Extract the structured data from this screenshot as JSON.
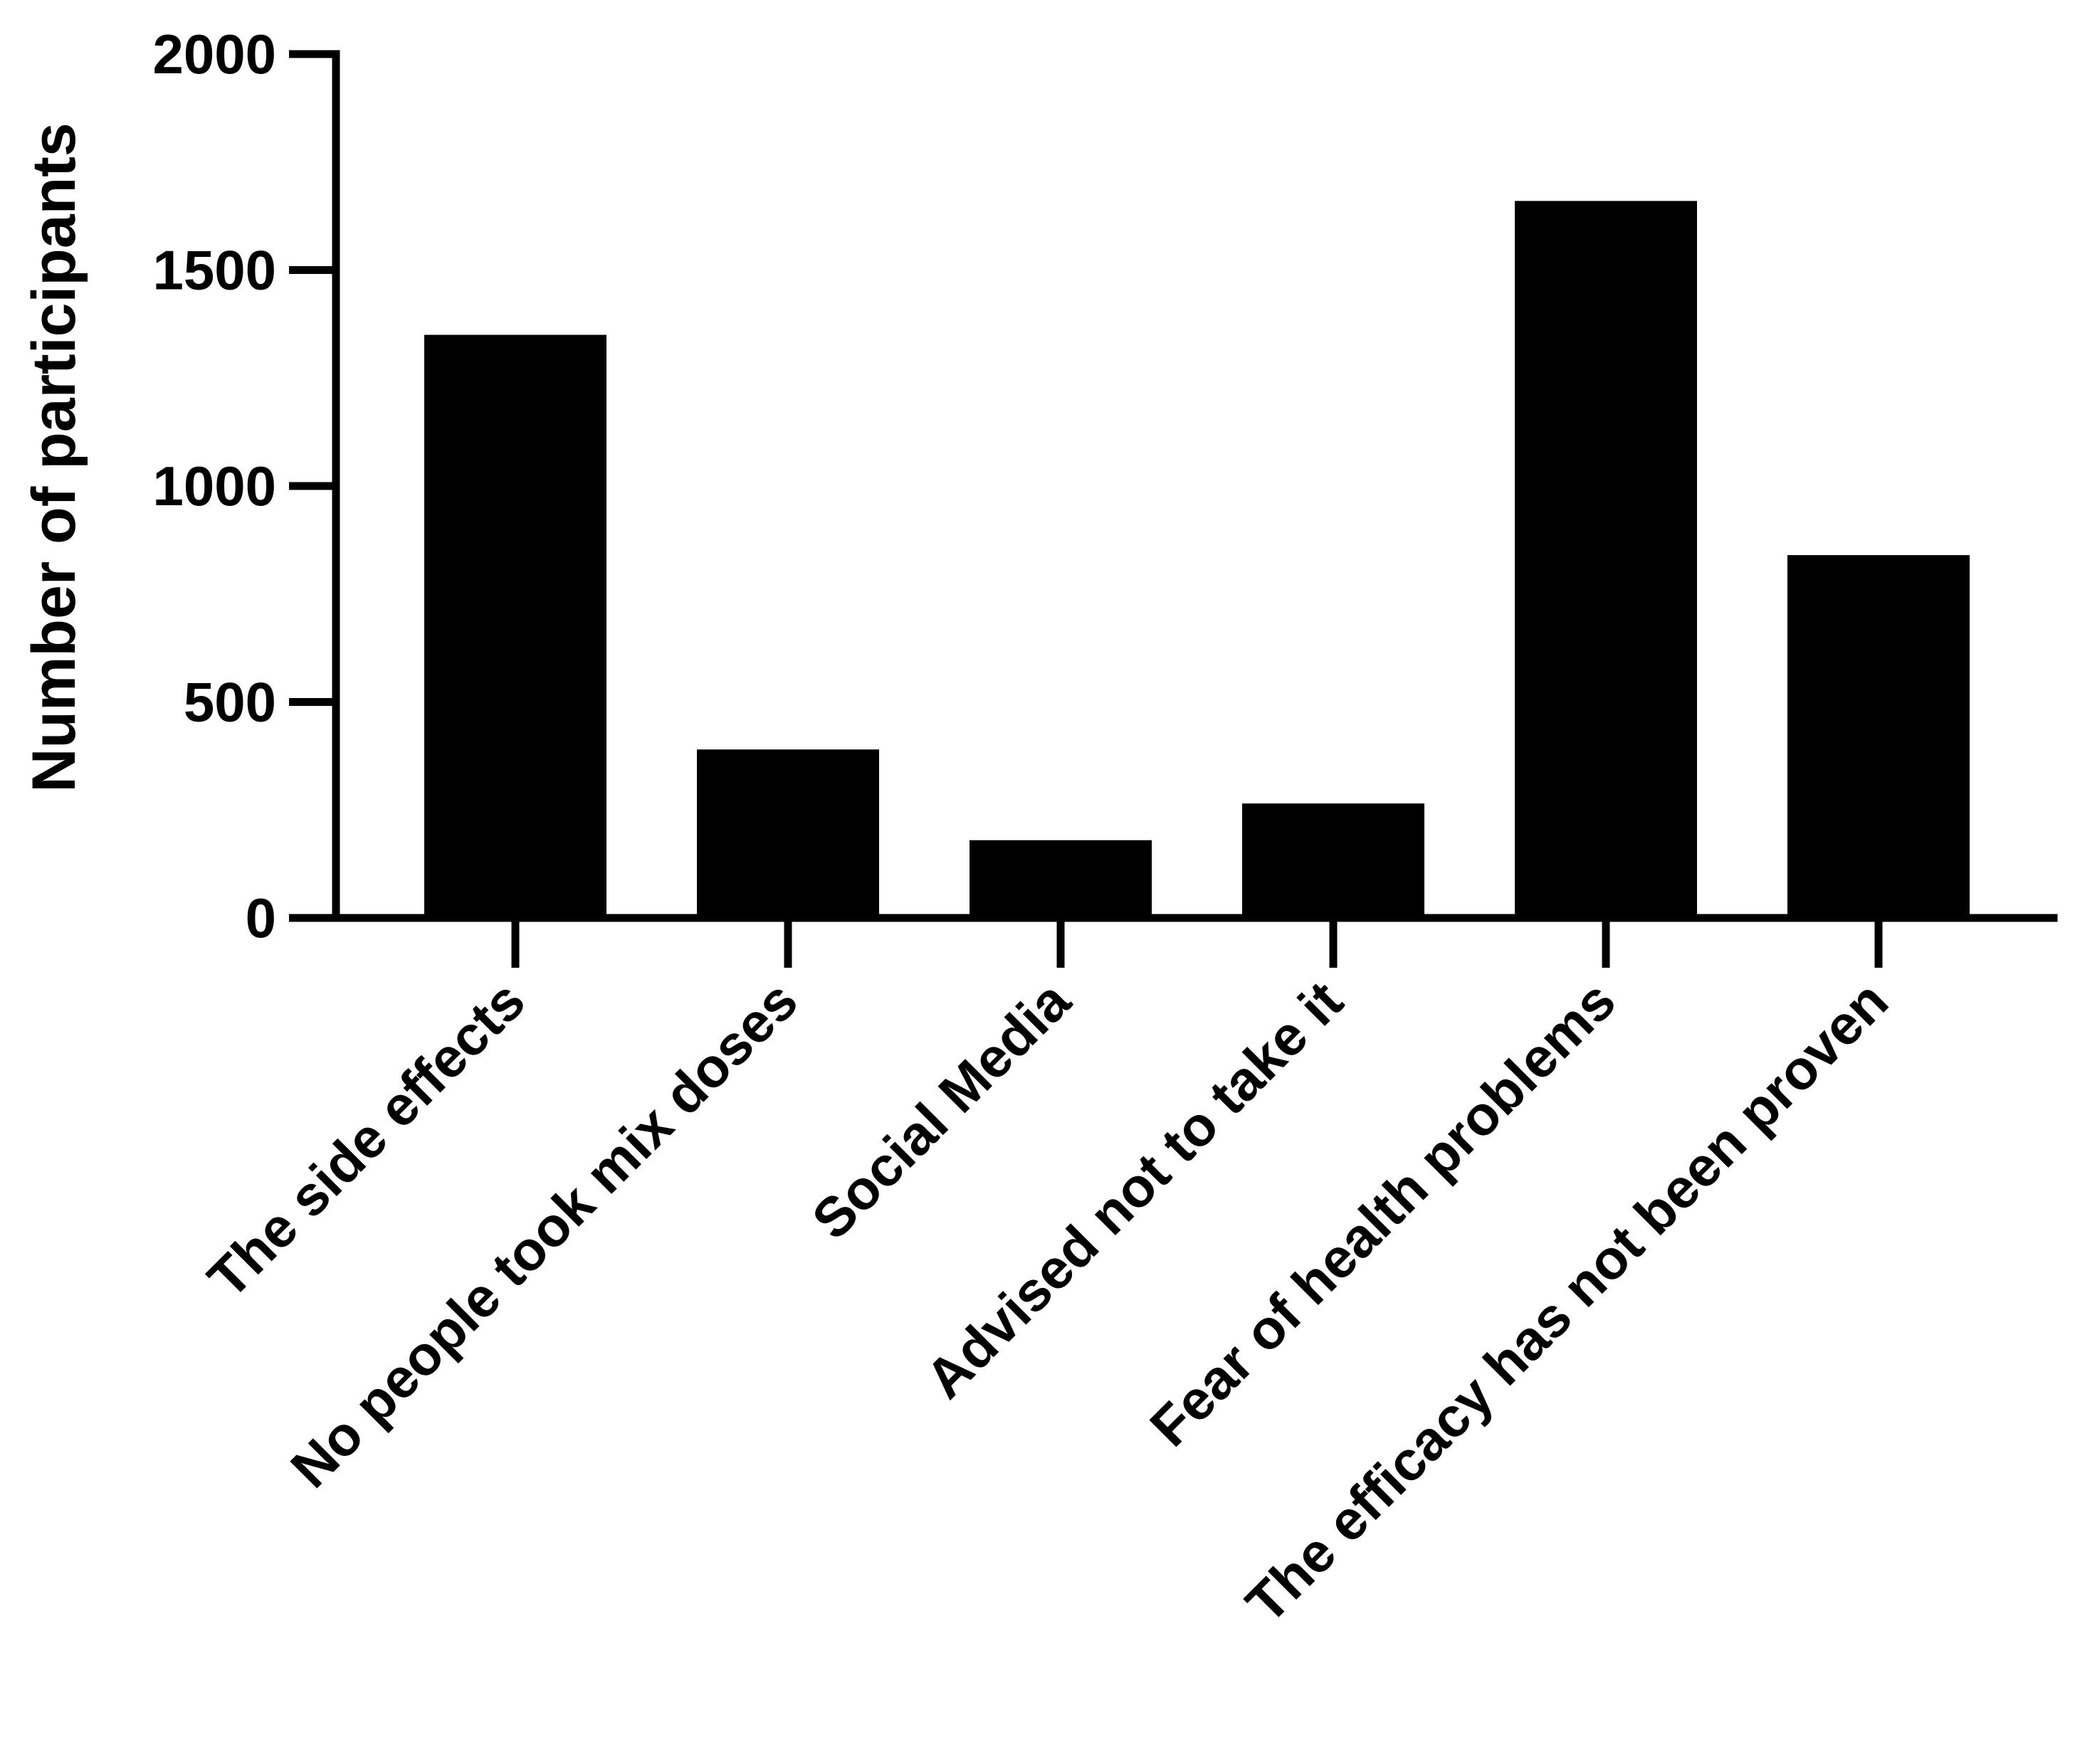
{
  "chart_data": {
    "type": "bar",
    "title": "",
    "xlabel": "",
    "ylabel": "Number of participants",
    "categories": [
      "The side effects",
      "No people took mix doses",
      "Social Media",
      "Advised not to take it",
      "Fear of health problems",
      "The efficacy has not been proven"
    ],
    "values": [
      1350,
      390,
      180,
      265,
      1660,
      840
    ],
    "ylim": [
      0,
      2000
    ],
    "yticks": [
      "0",
      "500",
      "1000",
      "1500",
      "2000"
    ],
    "grid": false,
    "legend": "none",
    "bar_color": "#000000"
  }
}
